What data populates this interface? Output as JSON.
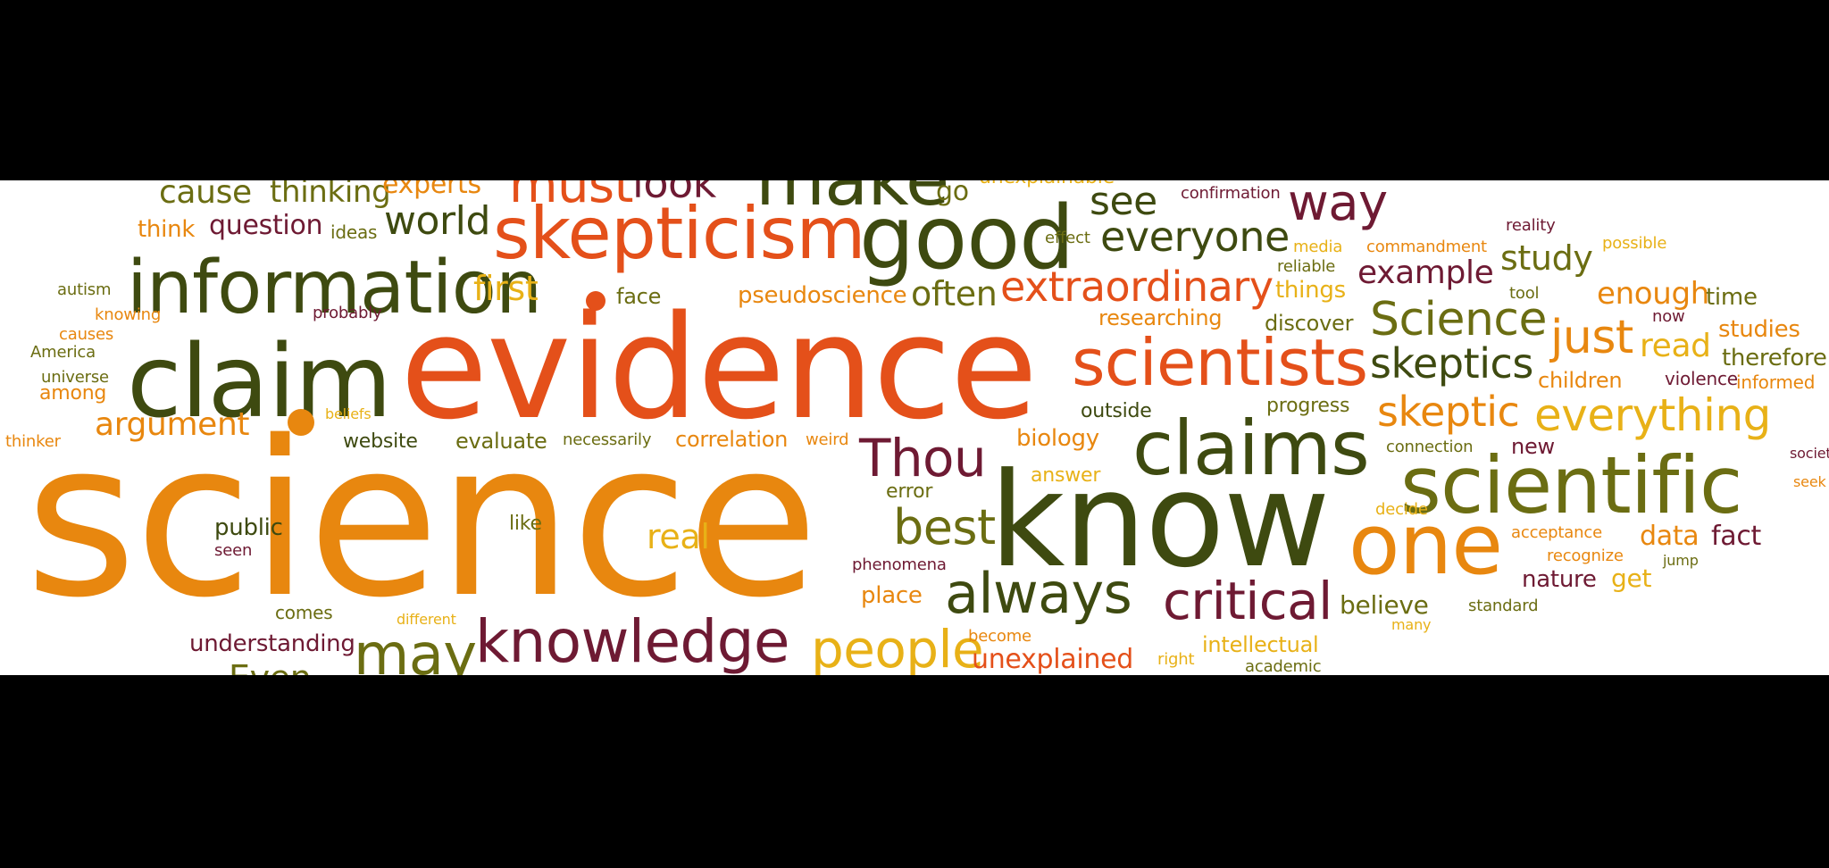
{
  "colors": {
    "background": "#000000",
    "panel": "#ffffff",
    "orange": "#e8870f",
    "red_orange": "#e4501a",
    "dark_olive": "#3e4a10",
    "olive": "#6b6d12",
    "maroon": "#6e1a33",
    "gold": "#e8b117",
    "light_orange": "#efa43f"
  },
  "words": [
    {
      "t": "science",
      "c": "orange"
    },
    {
      "t": "evidence",
      "c": "red_orange"
    },
    {
      "t": "know",
      "c": "dark_olive"
    },
    {
      "t": "claim",
      "c": "dark_olive"
    },
    {
      "t": "information",
      "c": "dark_olive"
    },
    {
      "t": "skepticism",
      "c": "red_orange"
    },
    {
      "t": "good",
      "c": "dark_olive"
    },
    {
      "t": "make",
      "c": "dark_olive"
    },
    {
      "t": "must",
      "c": "red_orange"
    },
    {
      "t": "look",
      "c": "maroon"
    },
    {
      "t": "claims",
      "c": "dark_olive"
    },
    {
      "t": "scientific",
      "c": "olive"
    },
    {
      "t": "scientists",
      "c": "red_orange"
    },
    {
      "t": "one",
      "c": "orange"
    },
    {
      "t": "knowledge",
      "c": "maroon"
    },
    {
      "t": "critical",
      "c": "maroon"
    },
    {
      "t": "always",
      "c": "dark_olive"
    },
    {
      "t": "Thou",
      "c": "maroon"
    },
    {
      "t": "may",
      "c": "olive"
    },
    {
      "t": "people",
      "c": "gold"
    },
    {
      "t": "best",
      "c": "olive"
    },
    {
      "t": "everything",
      "c": "gold"
    },
    {
      "t": "Science",
      "c": "olive"
    },
    {
      "t": "skeptics",
      "c": "dark_olive"
    },
    {
      "t": "just",
      "c": "orange"
    },
    {
      "t": "skeptic",
      "c": "orange"
    },
    {
      "t": "extraordinary",
      "c": "red_orange"
    },
    {
      "t": "everyone",
      "c": "dark_olive"
    },
    {
      "t": "way",
      "c": "maroon"
    },
    {
      "t": "see",
      "c": "dark_olive"
    },
    {
      "t": "world",
      "c": "dark_olive"
    },
    {
      "t": "cause",
      "c": "olive"
    },
    {
      "t": "thinking",
      "c": "olive"
    },
    {
      "t": "experts",
      "c": "orange"
    },
    {
      "t": "question",
      "c": "maroon"
    },
    {
      "t": "ideas",
      "c": "olive"
    },
    {
      "t": "think",
      "c": "orange"
    },
    {
      "t": "first",
      "c": "gold"
    },
    {
      "t": "often",
      "c": "olive"
    },
    {
      "t": "face",
      "c": "olive"
    },
    {
      "t": "pseudoscience",
      "c": "orange"
    },
    {
      "t": "argument",
      "c": "orange"
    },
    {
      "t": "example",
      "c": "maroon"
    },
    {
      "t": "study",
      "c": "olive"
    },
    {
      "t": "enough",
      "c": "orange"
    },
    {
      "t": "time",
      "c": "olive"
    },
    {
      "t": "read",
      "c": "gold"
    },
    {
      "t": "studies",
      "c": "orange"
    },
    {
      "t": "therefore",
      "c": "olive"
    },
    {
      "t": "children",
      "c": "orange"
    },
    {
      "t": "violence",
      "c": "maroon"
    },
    {
      "t": "informed",
      "c": "orange"
    },
    {
      "t": "researching",
      "c": "orange"
    },
    {
      "t": "discover",
      "c": "olive"
    },
    {
      "t": "things",
      "c": "gold"
    },
    {
      "t": "reliable",
      "c": "olive"
    },
    {
      "t": "media",
      "c": "gold"
    },
    {
      "t": "commandment",
      "c": "orange"
    },
    {
      "t": "possible",
      "c": "gold"
    },
    {
      "t": "reality",
      "c": "maroon"
    },
    {
      "t": "tool",
      "c": "olive"
    },
    {
      "t": "now",
      "c": "maroon"
    },
    {
      "t": "confirmation",
      "c": "maroon"
    },
    {
      "t": "effect",
      "c": "olive"
    },
    {
      "t": "go",
      "c": "olive"
    },
    {
      "t": "unexplainable",
      "c": "gold"
    },
    {
      "t": "autism",
      "c": "olive"
    },
    {
      "t": "knowing",
      "c": "orange"
    },
    {
      "t": "probably",
      "c": "maroon"
    },
    {
      "t": "causes",
      "c": "orange"
    },
    {
      "t": "America",
      "c": "olive"
    },
    {
      "t": "universe",
      "c": "olive"
    },
    {
      "t": "among",
      "c": "orange"
    },
    {
      "t": "thinker",
      "c": "orange"
    },
    {
      "t": "beliefs",
      "c": "gold"
    },
    {
      "t": "website",
      "c": "dark_olive"
    },
    {
      "t": "evaluate",
      "c": "olive"
    },
    {
      "t": "necessarily",
      "c": "olive"
    },
    {
      "t": "correlation",
      "c": "orange"
    },
    {
      "t": "weird",
      "c": "orange"
    },
    {
      "t": "biology",
      "c": "orange"
    },
    {
      "t": "outside",
      "c": "dark_olive"
    },
    {
      "t": "progress",
      "c": "olive"
    },
    {
      "t": "answer",
      "c": "gold"
    },
    {
      "t": "error",
      "c": "olive"
    },
    {
      "t": "connection",
      "c": "olive"
    },
    {
      "t": "new",
      "c": "maroon"
    },
    {
      "t": "society",
      "c": "maroon"
    },
    {
      "t": "seek",
      "c": "orange"
    },
    {
      "t": "public",
      "c": "dark_olive"
    },
    {
      "t": "seen",
      "c": "maroon"
    },
    {
      "t": "like",
      "c": "olive"
    },
    {
      "t": "real",
      "c": "gold"
    },
    {
      "t": "phenomena",
      "c": "maroon"
    },
    {
      "t": "place",
      "c": "orange"
    },
    {
      "t": "comes",
      "c": "olive"
    },
    {
      "t": "different",
      "c": "gold"
    },
    {
      "t": "understanding",
      "c": "maroon"
    },
    {
      "t": "become",
      "c": "orange"
    },
    {
      "t": "unexplained",
      "c": "red_orange"
    },
    {
      "t": "right",
      "c": "gold"
    },
    {
      "t": "intellectual",
      "c": "gold"
    },
    {
      "t": "academic",
      "c": "olive"
    },
    {
      "t": "believe",
      "c": "olive"
    },
    {
      "t": "many",
      "c": "gold"
    },
    {
      "t": "standard",
      "c": "olive"
    },
    {
      "t": "decide",
      "c": "gold"
    },
    {
      "t": "acceptance",
      "c": "orange"
    },
    {
      "t": "recognize",
      "c": "orange"
    },
    {
      "t": "data",
      "c": "orange"
    },
    {
      "t": "fact",
      "c": "maroon"
    },
    {
      "t": "nature",
      "c": "maroon"
    },
    {
      "t": "get",
      "c": "gold"
    },
    {
      "t": "jump",
      "c": "olive"
    },
    {
      "t": "Even",
      "c": "olive"
    }
  ]
}
